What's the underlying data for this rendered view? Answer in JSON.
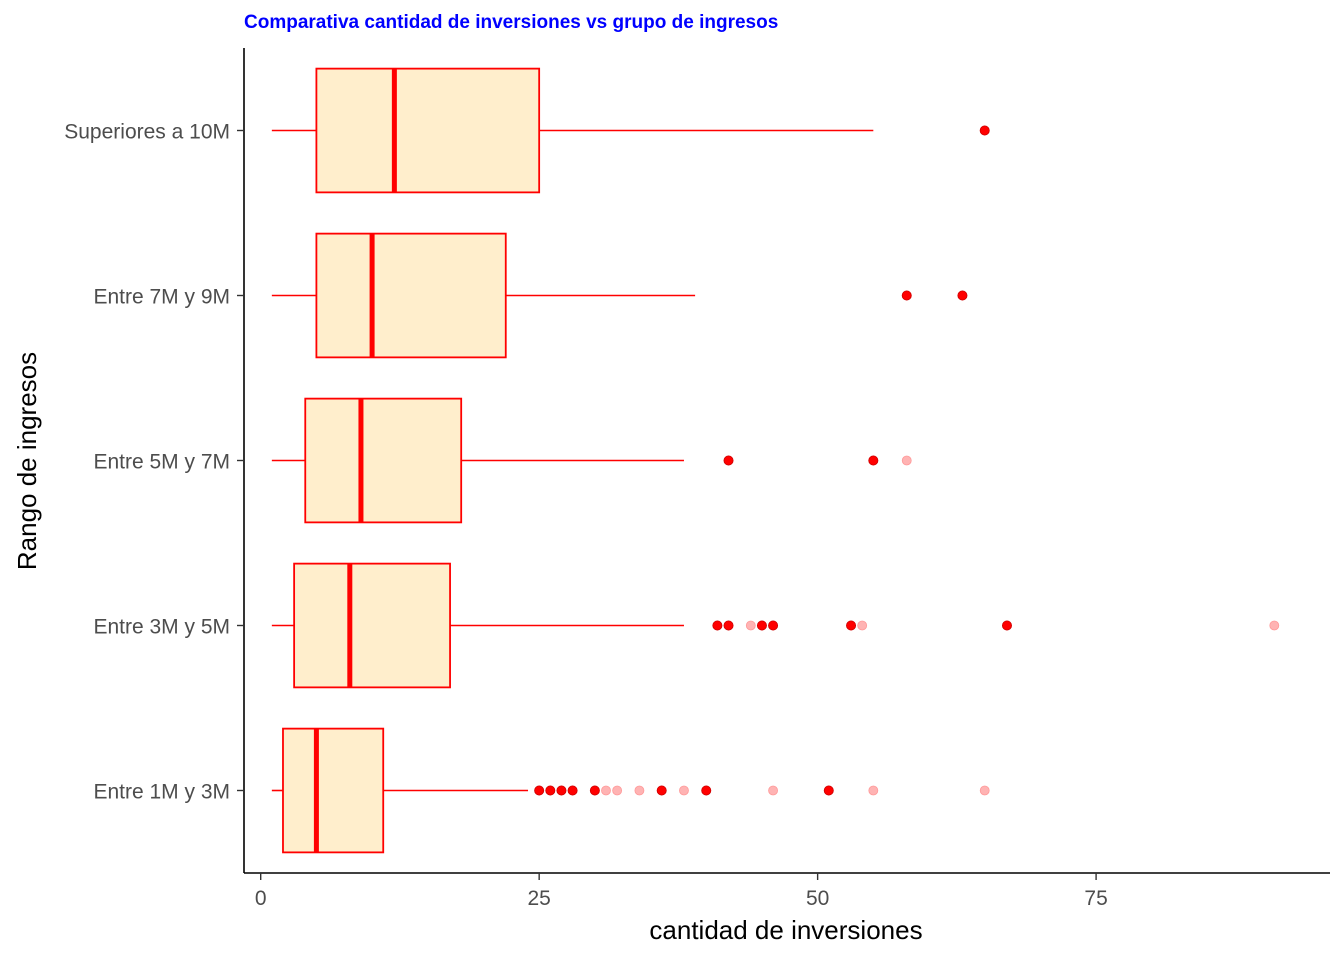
{
  "chart_data": {
    "type": "boxplot",
    "orientation": "horizontal",
    "title": "Comparativa cantidad de inversiones vs grupo de ingresos",
    "xlabel": "cantidad de inversiones",
    "ylabel": "Rango de ingresos",
    "xlim": [
      -1.5,
      96
    ],
    "x_ticks": [
      0,
      25,
      50,
      75
    ],
    "grid": false,
    "colors": {
      "title": "#0000ff",
      "box_stroke": "#ff0000",
      "box_fill": "#ffeecc",
      "outlier": "#ff0000",
      "outlier_faint": "#ffb3b3"
    },
    "categories": [
      "Entre 1M y 3M",
      "Entre 3M y  5M",
      "Entre 5M y 7M",
      "Entre 7M y 9M",
      "Superiores a 10M"
    ],
    "boxes": [
      {
        "category": "Entre 1M y 3M",
        "whisker_low": 1,
        "q1": 2,
        "median": 5,
        "q3": 11,
        "whisker_high": 24,
        "outliers": [
          25,
          26,
          27,
          28,
          30,
          40,
          36,
          51
        ],
        "faint_outliers": [
          31,
          32,
          34,
          38,
          46,
          55,
          65
        ]
      },
      {
        "category": "Entre 3M y  5M",
        "whisker_low": 1,
        "q1": 3,
        "median": 8,
        "q3": 17,
        "whisker_high": 38,
        "outliers": [
          41,
          42,
          45,
          46,
          53,
          67
        ],
        "faint_outliers": [
          44,
          54,
          91
        ]
      },
      {
        "category": "Entre 5M y 7M",
        "whisker_low": 1,
        "q1": 4,
        "median": 9,
        "q3": 18,
        "whisker_high": 38,
        "outliers": [
          42,
          55
        ],
        "faint_outliers": [
          58
        ]
      },
      {
        "category": "Entre 7M y 9M",
        "whisker_low": 1,
        "q1": 5,
        "median": 10,
        "q3": 22,
        "whisker_high": 39,
        "outliers": [
          58,
          63
        ],
        "faint_outliers": []
      },
      {
        "category": "Superiores a 10M",
        "whisker_low": 1,
        "q1": 5,
        "median": 12,
        "q3": 25,
        "whisker_high": 55,
        "outliers": [
          65
        ],
        "faint_outliers": []
      }
    ]
  }
}
